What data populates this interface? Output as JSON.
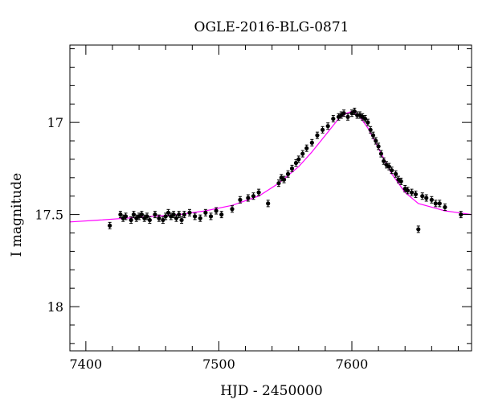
{
  "chart_data": {
    "type": "scatter",
    "title": "OGLE-2016-BLG-0871",
    "xlabel": "HJD - 2450000",
    "ylabel": "I magnitude",
    "xlim": [
      7388,
      7690
    ],
    "ylim": [
      18.24,
      16.58
    ],
    "y_inverted": true,
    "xticks": [
      7400,
      7500,
      7600
    ],
    "xtick_labels": [
      "7400",
      "7500",
      "7600"
    ],
    "yticks": [
      17,
      17.5,
      18
    ],
    "ytick_labels": [
      "17",
      "17.5",
      "18"
    ],
    "grid": false,
    "colors": {
      "points": "#000000",
      "model": "#ff00ff"
    },
    "model": {
      "name": "",
      "x": [
        7388,
        7410,
        7430,
        7450,
        7470,
        7490,
        7510,
        7530,
        7545,
        7560,
        7570,
        7580,
        7590,
        7596,
        7600,
        7605,
        7612,
        7620,
        7630,
        7640,
        7650,
        7660,
        7670,
        7680,
        7690
      ],
      "y": [
        17.54,
        17.53,
        17.52,
        17.51,
        17.5,
        17.48,
        17.45,
        17.4,
        17.33,
        17.24,
        17.16,
        17.07,
        16.98,
        16.95,
        16.94,
        16.96,
        17.03,
        17.14,
        17.28,
        17.38,
        17.44,
        17.46,
        17.48,
        17.49,
        17.5
      ]
    },
    "series": [
      {
        "name": "",
        "x": [
          7418,
          7426,
          7428,
          7430,
          7434,
          7436,
          7438,
          7440,
          7442,
          7444,
          7446,
          7448,
          7452,
          7455,
          7458,
          7460,
          7462,
          7464,
          7466,
          7468,
          7470,
          7472,
          7474,
          7478,
          7482,
          7486,
          7490,
          7494,
          7498,
          7502,
          7510,
          7516,
          7522,
          7526,
          7530,
          7537,
          7545,
          7547,
          7549,
          7552,
          7555,
          7558,
          7560,
          7563,
          7566,
          7570,
          7574,
          7578,
          7582,
          7586,
          7590,
          7592,
          7594,
          7597,
          7600,
          7602,
          7604,
          7606,
          7608,
          7610,
          7612,
          7614,
          7616,
          7618,
          7620,
          7622,
          7624,
          7626,
          7628,
          7630,
          7633,
          7635,
          7637,
          7640,
          7642,
          7645,
          7648,
          7650,
          7653,
          7656,
          7660,
          7663,
          7666,
          7670,
          7682
        ],
        "y": [
          17.56,
          17.5,
          17.52,
          17.51,
          17.53,
          17.5,
          17.52,
          17.51,
          17.5,
          17.52,
          17.51,
          17.53,
          17.5,
          17.52,
          17.53,
          17.51,
          17.49,
          17.51,
          17.5,
          17.52,
          17.5,
          17.53,
          17.5,
          17.49,
          17.51,
          17.52,
          17.49,
          17.51,
          17.48,
          17.5,
          17.47,
          17.42,
          17.41,
          17.4,
          17.38,
          17.44,
          17.33,
          17.3,
          17.31,
          17.28,
          17.25,
          17.22,
          17.2,
          17.17,
          17.14,
          17.11,
          17.07,
          17.04,
          17.02,
          16.98,
          16.97,
          16.96,
          16.95,
          16.97,
          16.95,
          16.94,
          16.96,
          16.96,
          16.97,
          16.98,
          17.0,
          17.04,
          17.07,
          17.1,
          17.13,
          17.17,
          17.21,
          17.23,
          17.24,
          17.26,
          17.28,
          17.31,
          17.32,
          17.36,
          17.37,
          17.38,
          17.39,
          17.58,
          17.4,
          17.41,
          17.42,
          17.44,
          17.44,
          17.46,
          17.5
        ]
      }
    ]
  }
}
